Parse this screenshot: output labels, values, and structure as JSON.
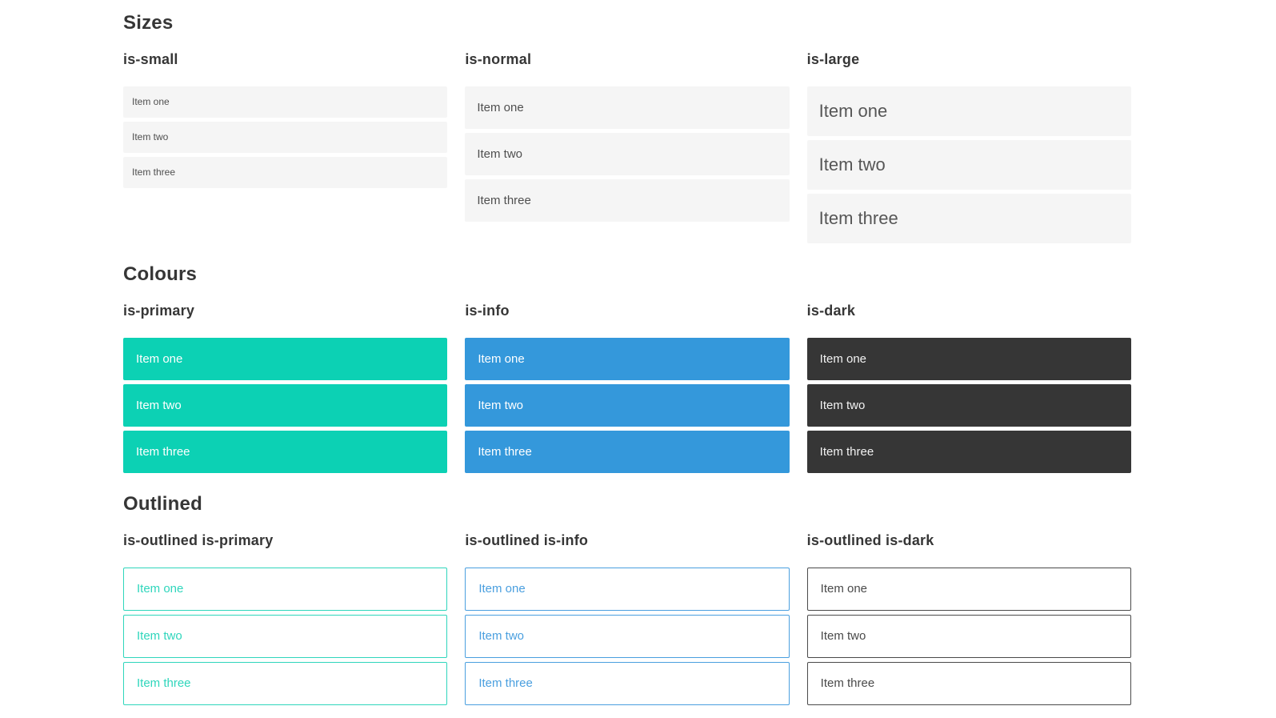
{
  "sections": [
    {
      "title": "Sizes",
      "variants": [
        {
          "label": "is-small",
          "items": [
            "Item one",
            "Item two",
            "Item three"
          ]
        },
        {
          "label": "is-normal",
          "items": [
            "Item one",
            "Item two",
            "Item three"
          ]
        },
        {
          "label": "is-large",
          "items": [
            "Item one",
            "Item two",
            "Item three"
          ]
        }
      ]
    },
    {
      "title": "Colours",
      "variants": [
        {
          "label": "is-primary",
          "items": [
            "Item one",
            "Item two",
            "Item three"
          ]
        },
        {
          "label": "is-info",
          "items": [
            "Item one",
            "Item two",
            "Item three"
          ]
        },
        {
          "label": "is-dark",
          "items": [
            "Item one",
            "Item two",
            "Item three"
          ]
        }
      ]
    },
    {
      "title": "Outlined",
      "variants": [
        {
          "label": "is-outlined is-primary",
          "items": [
            "Item one",
            "Item two",
            "Item three"
          ]
        },
        {
          "label": "is-outlined is-info",
          "items": [
            "Item one",
            "Item two",
            "Item three"
          ]
        },
        {
          "label": "is-outlined is-dark",
          "items": [
            "Item one",
            "Item two",
            "Item three"
          ]
        }
      ]
    }
  ],
  "colors": {
    "primary": "#0cd1b4",
    "info": "#3498db",
    "dark": "#363636",
    "item_background": "#f5f5f5",
    "heading_text": "#363636",
    "item_text": "#4f4f4f",
    "page_background": "#ffffff"
  }
}
